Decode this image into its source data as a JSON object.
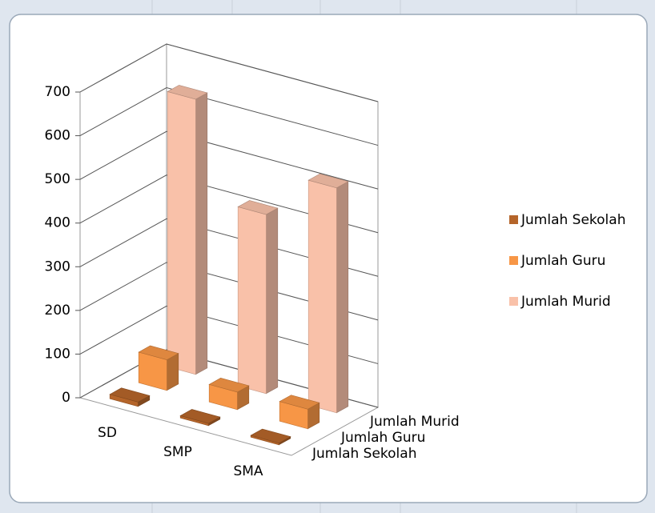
{
  "chart_data": {
    "type": "bar3d",
    "categories": [
      "SD",
      "SMP",
      "SMA"
    ],
    "series": [
      {
        "name": "Jumlah Sekolah",
        "color": "#b5652a",
        "values": [
          10,
          5,
          4
        ]
      },
      {
        "name": "Jumlah Guru",
        "color": "#f79646",
        "values": [
          70,
          40,
          45
        ]
      },
      {
        "name": "Jumlah Murid",
        "color": "#f9c1a9",
        "values": [
          630,
          410,
          515
        ]
      }
    ],
    "ylim": [
      0,
      700
    ],
    "yticks": [
      0,
      100,
      200,
      300,
      400,
      500,
      600,
      700
    ],
    "grid": true,
    "legend": "right"
  }
}
